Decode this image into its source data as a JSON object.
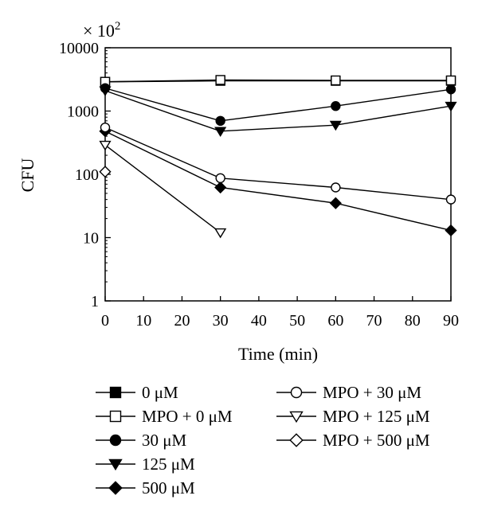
{
  "chart_data": {
    "type": "line",
    "multiplier": "× 10",
    "multiplier_exponent": "2",
    "ylabel": "CFU",
    "xlabel": "Time (min)",
    "xlim": [
      0,
      90
    ],
    "ylim": [
      1,
      10000
    ],
    "yscale": "log",
    "grid": false,
    "x_ticks": [
      0,
      10,
      20,
      30,
      40,
      50,
      60,
      70,
      80,
      90
    ],
    "y_ticks": [
      1,
      10,
      100,
      1000,
      10000
    ],
    "y_tick_labels": [
      "1",
      "10",
      "100",
      "1000",
      "10000"
    ],
    "legend_position": "bottom",
    "series": [
      {
        "name": "0 μM",
        "marker": "square",
        "fill": "filled",
        "x": [
          0,
          30,
          60,
          90
        ],
        "y": [
          2900,
          3000,
          3000,
          3000
        ]
      },
      {
        "name": "MPO + 0 μM",
        "marker": "square",
        "fill": "open",
        "x": [
          0,
          30,
          60,
          90
        ],
        "y": [
          2900,
          3100,
          3050,
          3050
        ]
      },
      {
        "name": "30 μM",
        "marker": "circle",
        "fill": "filled",
        "x": [
          0,
          30,
          60,
          90
        ],
        "y": [
          2300,
          700,
          1200,
          2200
        ]
      },
      {
        "name": "125 μM",
        "marker": "triangle-down",
        "fill": "filled",
        "x": [
          0,
          30,
          60,
          90
        ],
        "y": [
          2100,
          480,
          600,
          1200
        ]
      },
      {
        "name": "500 μM",
        "marker": "diamond",
        "fill": "filled",
        "x": [
          0,
          30,
          60,
          90
        ],
        "y": [
          480,
          62,
          35,
          13
        ]
      },
      {
        "name": "MPO + 30 μM",
        "marker": "circle",
        "fill": "open",
        "x": [
          0,
          30,
          60,
          90
        ],
        "y": [
          550,
          87,
          62,
          40
        ]
      },
      {
        "name": "MPO + 125 μM",
        "marker": "triangle-down",
        "fill": "open",
        "x": [
          0,
          30
        ],
        "y": [
          290,
          12
        ]
      },
      {
        "name": "MPO + 500 μM",
        "marker": "diamond",
        "fill": "open",
        "x": [
          0
        ],
        "y": [
          110
        ]
      }
    ]
  }
}
